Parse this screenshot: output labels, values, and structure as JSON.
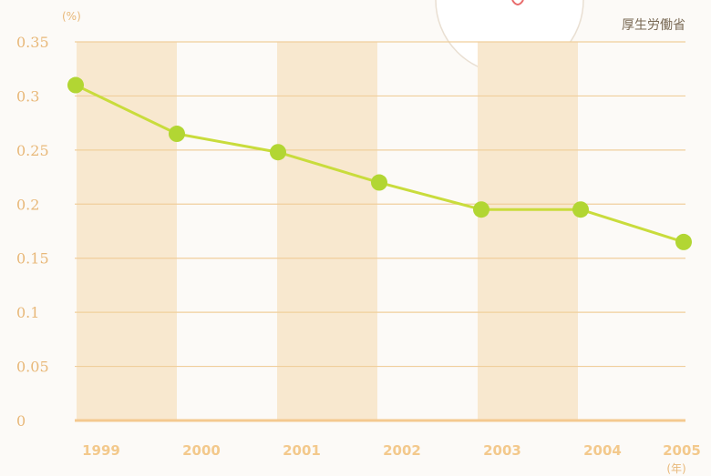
{
  "chart_data": {
    "type": "line",
    "source": "厚生労働省",
    "y_unit": "(%)",
    "x": [
      "1999",
      "2000",
      "2001",
      "2002",
      "2003",
      "2004",
      "2005"
    ],
    "x_sublabel": "(年)",
    "series": [
      {
        "values": [
          0.31,
          0.265,
          0.248,
          0.22,
          0.195,
          0.195,
          0.165
        ]
      }
    ],
    "ylim": [
      0,
      0.35
    ],
    "yticks": [
      0,
      0.05,
      0.1,
      0.15,
      0.2,
      0.25,
      0.3,
      0.35
    ],
    "ytick_labels": [
      "0",
      "0.05",
      "0.1",
      "0.15",
      "0.2",
      "0.25",
      "0.3",
      "0.35"
    ],
    "grid": true,
    "colors": {
      "line": "#c9dc3c",
      "marker": "#b2d633",
      "band": "#f8e8cf",
      "grid": "#f0cf9c",
      "axis": "#f4c98f"
    }
  }
}
